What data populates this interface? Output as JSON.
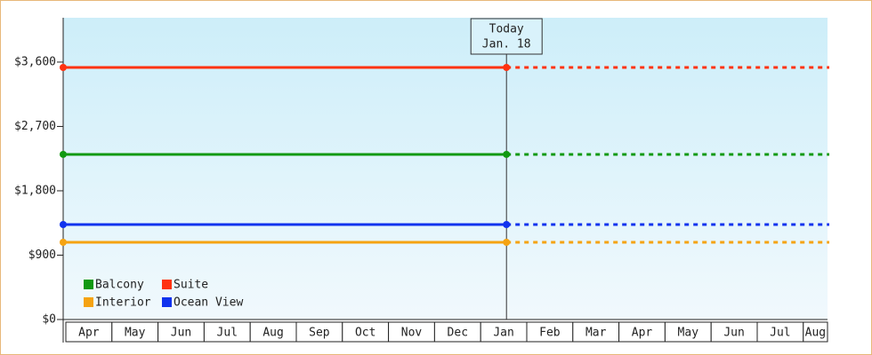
{
  "chart_data": {
    "type": "line",
    "categories": [
      "Apr",
      "May",
      "Jun",
      "Jul",
      "Aug",
      "Sep",
      "Oct",
      "Nov",
      "Dec",
      "Jan",
      "Feb",
      "Mar",
      "Apr",
      "May",
      "Jun",
      "Jul",
      "Aug"
    ],
    "series": [
      {
        "name": "Balcony",
        "color": "#119911",
        "value": 2309
      },
      {
        "name": "Suite",
        "color": "#ff3311",
        "value": 3525
      },
      {
        "name": "Interior",
        "color": "#f5a312",
        "value": 1080
      },
      {
        "name": "Ocean View",
        "color": "#1133ee",
        "value": 1328
      }
    ],
    "annotation": {
      "title": "Today",
      "label": "Jan. 18"
    },
    "ylim": [
      0,
      4220
    ],
    "yticks": [
      {
        "value": 0,
        "label": "$0"
      },
      {
        "value": 900,
        "label": "$900"
      },
      {
        "value": 1800,
        "label": "$1,800"
      },
      {
        "value": 2700,
        "label": "$2,700"
      },
      {
        "value": 3600,
        "label": "$3,600"
      }
    ],
    "legend": "lower left"
  }
}
